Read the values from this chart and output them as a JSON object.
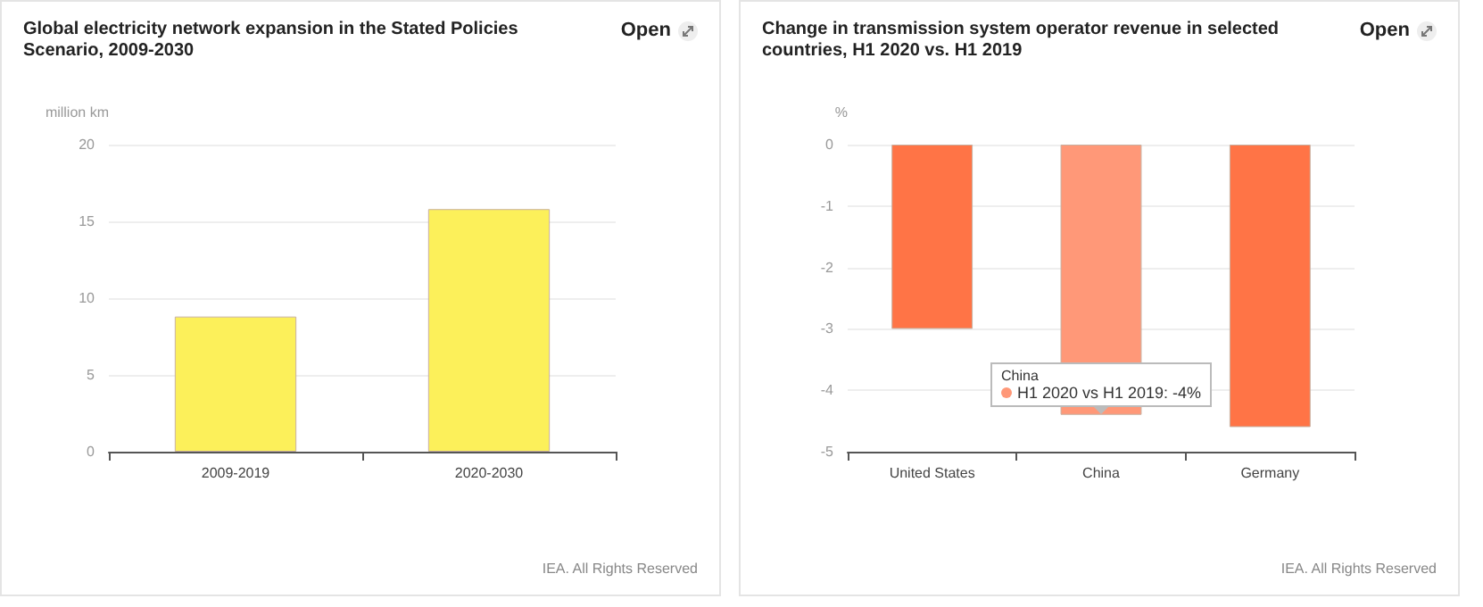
{
  "chart_data": [
    {
      "type": "bar",
      "title": "Global electricity network expansion in the Stated Policies Scenario, 2009-2030",
      "ylabel": "million km",
      "categories": [
        "2009-2019",
        "2020-2030"
      ],
      "values": [
        8.8,
        15.8
      ],
      "color": "#fcf05a",
      "ylim": [
        0,
        20
      ],
      "yticks": [
        0,
        5,
        10,
        15,
        20
      ],
      "grid": "y",
      "annotations": [
        "Open",
        "IEA. All Rights Reserved"
      ]
    },
    {
      "type": "bar",
      "title": "Change in transmission system operator revenue in selected countries, H1 2020 vs. H1 2019",
      "ylabel": "%",
      "categories": [
        "United States",
        "China",
        "Germany"
      ],
      "values": [
        -3,
        -4.4,
        -4.6
      ],
      "colors": [
        "#ff7446",
        "#ff9878",
        "#ff7446"
      ],
      "ylim": [
        -5,
        0
      ],
      "yticks": [
        -5,
        -4,
        -3,
        -2,
        -1,
        0
      ],
      "grid": "y",
      "annotations": [
        "Open",
        {
          "text": "China\nH1 2020 vs H1 2019: -4%",
          "x": "China",
          "y": -4.4
        },
        "IEA. All Rights Reserved"
      ]
    }
  ]
}
